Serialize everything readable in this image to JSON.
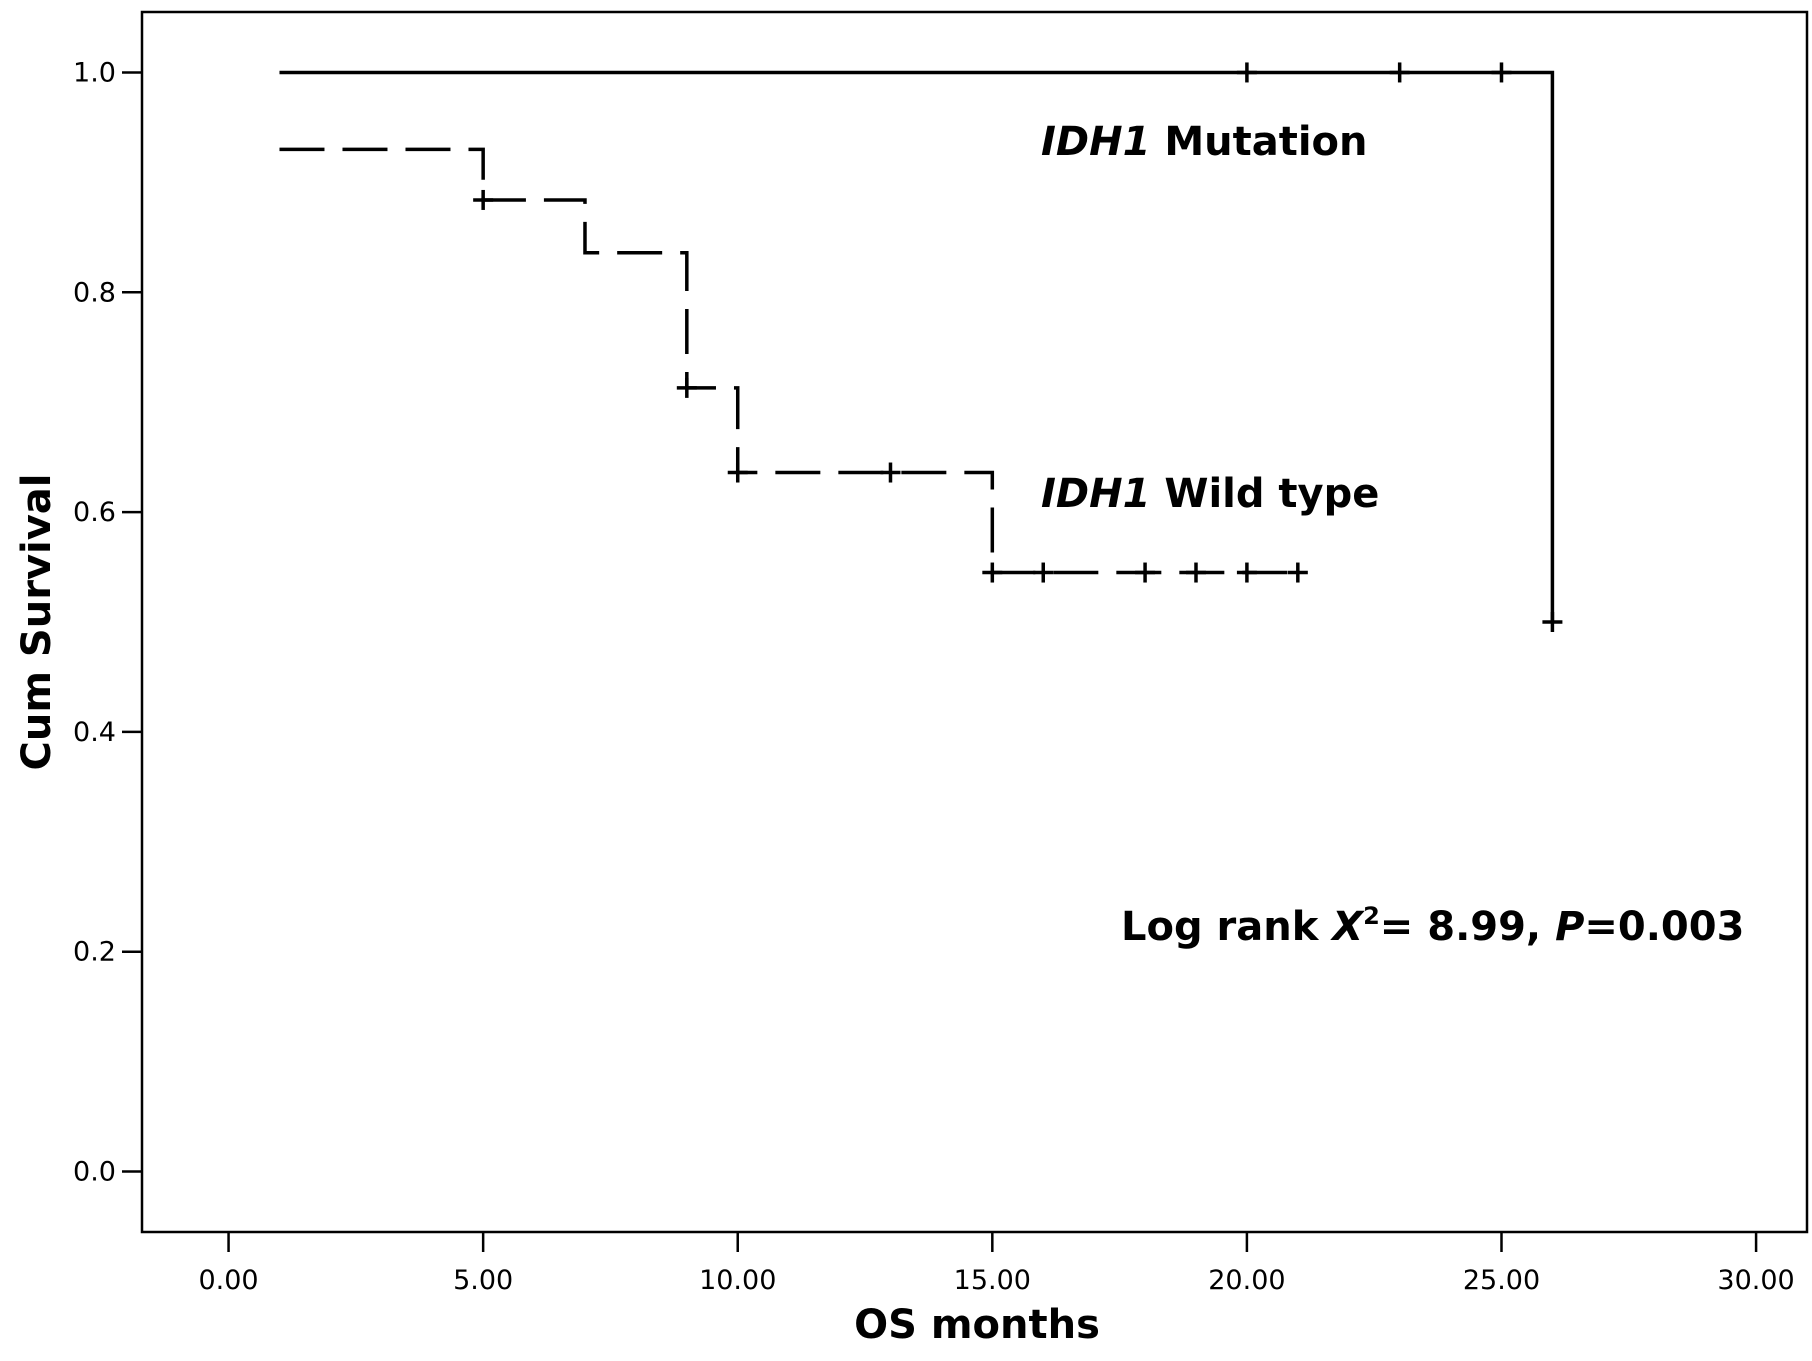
{
  "chart_data": {
    "type": "line",
    "xlabel": "OS months",
    "ylabel": "Cum Survival",
    "xlim": [
      -1.7,
      31.0
    ],
    "ylim": [
      -0.055,
      1.055
    ],
    "x_ticks": [
      0,
      5,
      10,
      15,
      20,
      25,
      30
    ],
    "x_tick_labels": [
      "0.00",
      "5.00",
      "10.00",
      "15.00",
      "20.00",
      "25.00",
      "30.00"
    ],
    "y_ticks": [
      0.0,
      0.2,
      0.4,
      0.6,
      0.8,
      1.0
    ],
    "y_tick_labels": [
      "0.0",
      "0.2",
      "0.4",
      "0.6",
      "0.8",
      "1.0"
    ],
    "grid": false,
    "series": [
      {
        "label_prefix": "IDH1",
        "label_suffix": " Mutation",
        "line_style": "solid",
        "color": "#000000",
        "steps": [
          {
            "x": 1.0,
            "y": 1.0
          },
          {
            "x": 26.0,
            "y": 1.0
          },
          {
            "x": 26.0,
            "y": 0.5
          }
        ],
        "censored": [
          {
            "x": 20.0,
            "y": 1.0
          },
          {
            "x": 23.0,
            "y": 1.0
          },
          {
            "x": 25.0,
            "y": 1.0
          },
          {
            "x": 26.0,
            "y": 0.5
          }
        ]
      },
      {
        "label_prefix": "IDH1",
        "label_suffix": " Wild type",
        "line_style": "dashed",
        "color": "#000000",
        "steps": [
          {
            "x": 1.0,
            "y": 0.93
          },
          {
            "x": 5.0,
            "y": 0.93
          },
          {
            "x": 5.0,
            "y": 0.884
          },
          {
            "x": 7.0,
            "y": 0.884
          },
          {
            "x": 7.0,
            "y": 0.836
          },
          {
            "x": 9.0,
            "y": 0.836
          },
          {
            "x": 9.0,
            "y": 0.713
          },
          {
            "x": 10.0,
            "y": 0.713
          },
          {
            "x": 10.0,
            "y": 0.636
          },
          {
            "x": 15.0,
            "y": 0.636
          },
          {
            "x": 15.0,
            "y": 0.545
          },
          {
            "x": 21.0,
            "y": 0.545
          }
        ],
        "censored": [
          {
            "x": 5.0,
            "y": 0.884
          },
          {
            "x": 9.0,
            "y": 0.713
          },
          {
            "x": 10.0,
            "y": 0.636
          },
          {
            "x": 13.0,
            "y": 0.636
          },
          {
            "x": 15.0,
            "y": 0.545
          },
          {
            "x": 16.0,
            "y": 0.545
          },
          {
            "x": 18.0,
            "y": 0.545
          },
          {
            "x": 19.0,
            "y": 0.545
          },
          {
            "x": 20.0,
            "y": 0.545
          },
          {
            "x": 21.0,
            "y": 0.545
          }
        ]
      }
    ],
    "annotation": {
      "prefix": "Log rank ",
      "chi_symbol": "X",
      "chi_superscript": "2",
      "chi_value": "= 8.99, ",
      "p_symbol": "P",
      "p_value": "=0.003"
    }
  }
}
